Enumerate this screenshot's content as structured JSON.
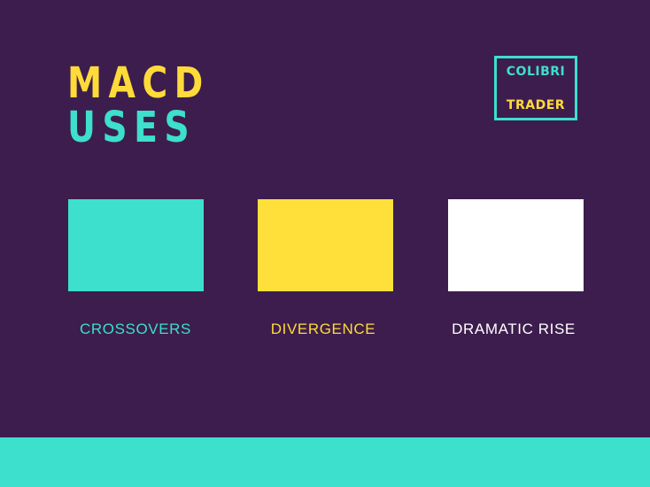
{
  "title": {
    "line1": "MACD",
    "line2": "USES"
  },
  "logo": {
    "line1": "COLIBRI",
    "line2": "TRADER"
  },
  "uses": [
    {
      "label": "CROSSOVERS",
      "color": "#3ddfcd"
    },
    {
      "label": "DIVERGENCE",
      "color": "#ffdf3a"
    },
    {
      "label": "DRAMATIC RISE",
      "color": "#ffffff"
    }
  ],
  "colors": {
    "background": "#3d1d4d",
    "teal": "#3ddfcd",
    "yellow": "#ffdb3a",
    "white": "#ffffff"
  }
}
